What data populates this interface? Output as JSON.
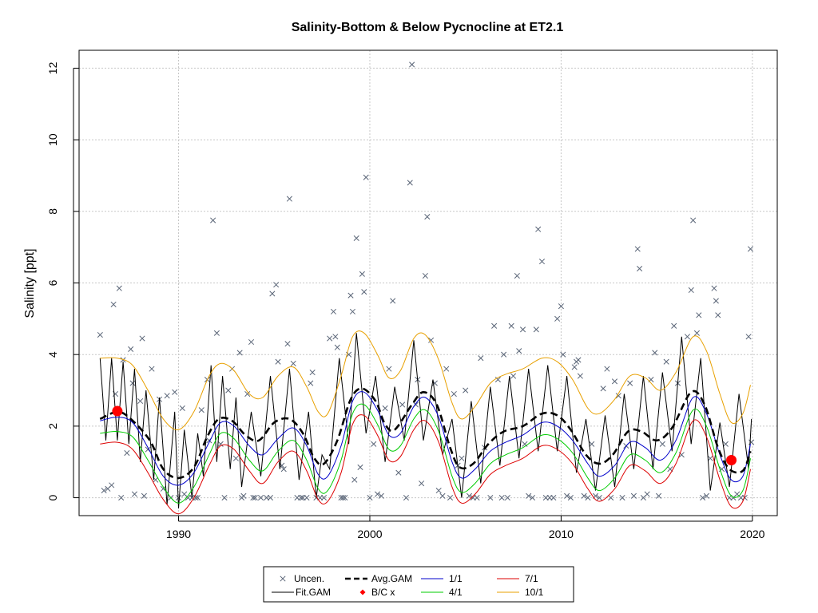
{
  "chart_data": {
    "type": "line",
    "title": "Salinity-Bottom & Below Pycnocline at ET2.1",
    "xlabel": "",
    "ylabel": "Salinity [ppt]",
    "xlim": [
      1984.8,
      2021.3
    ],
    "ylim": [
      -0.5,
      12.5
    ],
    "x_ticks": [
      "1990",
      "2000",
      "2010",
      "2020"
    ],
    "y_ticks": [
      "0",
      "2",
      "4",
      "6",
      "8",
      "10",
      "12"
    ],
    "grid": true,
    "legend_position": "bottom",
    "legend": [
      {
        "label": "Uncen.",
        "symbol": "x",
        "color": "#5a6577"
      },
      {
        "label": "Fit.GAM",
        "symbol": "line",
        "color": "#000000"
      },
      {
        "label": "Avg.GAM",
        "symbol": "dashed",
        "color": "#000000"
      },
      {
        "label": "B/C x",
        "symbol": "diamond",
        "color": "#ff0000"
      },
      {
        "label": "1/1",
        "symbol": "line",
        "color": "#0000cc"
      },
      {
        "label": "4/1",
        "symbol": "line",
        "color": "#00cc00"
      },
      {
        "label": "7/1",
        "symbol": "line",
        "color": "#dd0000"
      },
      {
        "label": "10/1",
        "symbol": "line",
        "color": "#e8a000"
      }
    ],
    "avg_gam": {
      "x": [
        1985.9,
        1986.8,
        1987.5,
        1988.5,
        1989.2,
        1990.0,
        1990.8,
        1991.5,
        1992.1,
        1992.8,
        1993.5,
        1994.2,
        1995.0,
        1995.8,
        1996.5,
        1997.1,
        1997.6,
        1998.3,
        1999.0,
        1999.6,
        2000.3,
        2000.8,
        2001.3,
        2002.2,
        2002.8,
        2003.5,
        2004.2,
        2004.7,
        2005.4,
        2006.2,
        2007.0,
        2008.0,
        2009.0,
        2009.8,
        2010.5,
        2011.3,
        2012.0,
        2012.7,
        2013.5,
        2014.2,
        2015.0,
        2015.8,
        2016.8,
        2017.5,
        2018.2,
        2018.8,
        2019.5,
        2019.9
      ],
      "y": [
        2.2,
        2.4,
        2.2,
        1.6,
        0.8,
        0.55,
        0.85,
        1.7,
        2.2,
        2.15,
        1.75,
        1.6,
        2.1,
        2.2,
        1.8,
        1.1,
        0.95,
        1.6,
        2.75,
        3.05,
        2.7,
        2.05,
        1.9,
        2.6,
        2.95,
        2.6,
        1.4,
        0.85,
        0.95,
        1.5,
        1.85,
        2.0,
        2.35,
        2.3,
        1.9,
        1.2,
        0.95,
        1.2,
        1.85,
        1.85,
        1.6,
        1.95,
        2.95,
        2.6,
        1.4,
        0.8,
        0.75,
        1.3
      ]
    },
    "fit_gam": {
      "x": [
        1985.9,
        1986.2,
        1986.5,
        1986.8,
        1987.1,
        1987.4,
        1987.7,
        1988.0,
        1988.3,
        1988.7,
        1989.0,
        1989.4,
        1989.8,
        1990.0,
        1990.3,
        1990.7,
        1991.0,
        1991.3,
        1991.7,
        1992.0,
        1992.3,
        1992.7,
        1993.0,
        1993.3,
        1993.8,
        1994.3,
        1994.8,
        1995.3,
        1995.8,
        1996.3,
        1996.8,
        1997.2,
        1997.5,
        1997.9,
        1998.4,
        1998.9,
        1999.3,
        1999.8,
        2000.3,
        2000.8,
        2001.3,
        2001.8,
        2002.3,
        2002.8,
        2003.3,
        2003.8,
        2004.3,
        2004.8,
        2005.3,
        2005.8,
        2006.3,
        2006.8,
        2007.3,
        2007.8,
        2008.3,
        2008.8,
        2009.3,
        2009.8,
        2010.3,
        2010.8,
        2011.3,
        2011.8,
        2012.3,
        2012.8,
        2013.3,
        2013.8,
        2014.3,
        2014.8,
        2015.3,
        2015.8,
        2016.3,
        2016.8,
        2017.3,
        2017.8,
        2018.3,
        2018.8,
        2019.3,
        2019.8,
        2019.95
      ],
      "y": [
        3.9,
        1.6,
        3.9,
        1.6,
        3.8,
        1.5,
        3.6,
        1.0,
        3.0,
        0.5,
        2.8,
        -0.2,
        2.4,
        -0.3,
        1.9,
        0.0,
        1.8,
        0.6,
        3.7,
        1.0,
        3.4,
        0.8,
        2.8,
        0.3,
        2.4,
        0.6,
        3.4,
        0.8,
        3.6,
        0.5,
        2.4,
        0.0,
        1.2,
        0.8,
        3.9,
        1.5,
        4.6,
        1.8,
        3.4,
        1.0,
        3.1,
        1.6,
        4.4,
        1.6,
        3.3,
        1.2,
        2.2,
        0.0,
        2.7,
        0.4,
        3.1,
        0.9,
        3.4,
        1.1,
        3.6,
        1.3,
        3.7,
        1.3,
        3.4,
        0.7,
        2.2,
        0.2,
        2.3,
        0.3,
        2.9,
        0.8,
        3.4,
        0.8,
        3.5,
        1.3,
        4.5,
        1.5,
        3.9,
        0.2,
        2.1,
        0.3,
        2.9,
        0.8,
        2.2
      ]
    },
    "series_1_1": {
      "x": [
        1985.9,
        1986.8,
        1987.6,
        1988.4,
        1989.2,
        1990.0,
        1990.8,
        1991.6,
        1992.2,
        1992.9,
        1993.7,
        1994.4,
        1995.2,
        1996.0,
        1996.7,
        1997.3,
        1997.8,
        1998.5,
        1999.1,
        1999.7,
        2000.4,
        2001.0,
        2001.6,
        2002.3,
        2002.9,
        2003.6,
        2004.3,
        2004.8,
        2005.5,
        2006.3,
        2007.1,
        2008.0,
        2009.0,
        2009.8,
        2010.6,
        2011.4,
        2012.0,
        2012.8,
        2013.6,
        2014.4,
        2015.2,
        2016.0,
        2016.9,
        2017.6,
        2018.3,
        2018.9,
        2019.5,
        2019.9
      ],
      "y": [
        2.15,
        2.25,
        2.1,
        1.4,
        0.6,
        0.35,
        0.7,
        1.55,
        2.1,
        2.0,
        1.45,
        1.2,
        1.65,
        1.95,
        1.45,
        0.65,
        0.6,
        1.45,
        2.7,
        2.95,
        2.45,
        1.75,
        1.8,
        2.55,
        2.8,
        2.25,
        1.0,
        0.55,
        0.8,
        1.3,
        1.55,
        1.75,
        2.1,
        2.0,
        1.6,
        0.95,
        0.6,
        0.9,
        1.55,
        1.4,
        1.05,
        1.6,
        2.8,
        2.35,
        1.2,
        0.5,
        0.6,
        1.5
      ]
    },
    "series_4_1": {
      "x": [
        1985.9,
        1986.8,
        1987.6,
        1988.4,
        1989.2,
        1990.0,
        1990.8,
        1991.6,
        1992.2,
        1992.9,
        1993.7,
        1994.4,
        1995.2,
        1996.0,
        1996.7,
        1997.3,
        1997.8,
        1998.5,
        1999.1,
        1999.7,
        2000.4,
        2001.0,
        2001.6,
        2002.3,
        2002.9,
        2003.6,
        2004.3,
        2004.8,
        2005.5,
        2006.3,
        2007.1,
        2008.0,
        2009.0,
        2009.8,
        2010.6,
        2011.4,
        2012.0,
        2012.8,
        2013.6,
        2014.4,
        2015.2,
        2016.0,
        2016.9,
        2017.6,
        2018.3,
        2018.9,
        2019.5,
        2019.9
      ],
      "y": [
        1.8,
        1.85,
        1.7,
        1.05,
        0.3,
        -0.15,
        0.3,
        1.2,
        1.8,
        1.65,
        1.05,
        0.75,
        1.3,
        1.6,
        1.05,
        0.25,
        0.2,
        1.05,
        2.35,
        2.6,
        2.05,
        1.35,
        1.45,
        2.2,
        2.45,
        1.85,
        0.6,
        0.15,
        0.4,
        0.95,
        1.2,
        1.4,
        1.75,
        1.65,
        1.25,
        0.55,
        0.2,
        0.55,
        1.2,
        1.05,
        0.7,
        1.25,
        2.45,
        2.0,
        0.8,
        0.05,
        0.2,
        1.1
      ]
    },
    "series_7_1": {
      "x": [
        1985.9,
        1986.8,
        1987.6,
        1988.4,
        1989.2,
        1990.0,
        1990.8,
        1991.6,
        1992.2,
        1992.9,
        1993.7,
        1994.4,
        1995.2,
        1996.0,
        1996.7,
        1997.3,
        1997.8,
        1998.5,
        1999.1,
        1999.7,
        2000.4,
        2001.0,
        2001.6,
        2002.3,
        2002.9,
        2003.6,
        2004.3,
        2004.8,
        2005.5,
        2006.3,
        2007.1,
        2008.0,
        2009.0,
        2009.8,
        2010.6,
        2011.4,
        2012.0,
        2012.8,
        2013.6,
        2014.4,
        2015.2,
        2016.0,
        2016.9,
        2017.6,
        2018.3,
        2018.9,
        2019.5,
        2019.9
      ],
      "y": [
        1.5,
        1.55,
        1.35,
        0.7,
        -0.05,
        -0.45,
        0.0,
        0.9,
        1.45,
        1.35,
        0.75,
        0.4,
        1.0,
        1.3,
        0.75,
        -0.05,
        -0.1,
        0.7,
        2.05,
        2.3,
        1.75,
        1.05,
        1.15,
        1.9,
        2.15,
        1.55,
        0.3,
        -0.15,
        0.1,
        0.65,
        0.9,
        1.1,
        1.45,
        1.35,
        0.95,
        0.25,
        -0.1,
        0.25,
        0.9,
        0.75,
        0.4,
        0.95,
        2.15,
        1.7,
        0.5,
        -0.25,
        -0.1,
        0.8
      ]
    },
    "series_10_1": {
      "x": [
        1985.9,
        1986.8,
        1987.6,
        1988.4,
        1989.2,
        1990.0,
        1990.8,
        1991.6,
        1992.2,
        1992.9,
        1993.7,
        1994.4,
        1995.2,
        1996.0,
        1996.7,
        1997.3,
        1997.8,
        1998.5,
        1999.1,
        1999.7,
        2000.4,
        2001.0,
        2001.6,
        2002.3,
        2002.9,
        2003.6,
        2004.3,
        2004.8,
        2005.5,
        2006.3,
        2007.1,
        2008.0,
        2009.0,
        2009.8,
        2010.6,
        2011.4,
        2012.0,
        2012.8,
        2013.6,
        2014.4,
        2015.2,
        2016.0,
        2016.9,
        2017.6,
        2018.3,
        2018.9,
        2019.5,
        2019.9
      ],
      "y": [
        3.9,
        3.9,
        3.7,
        3.0,
        2.2,
        1.9,
        2.4,
        3.4,
        3.75,
        3.55,
        2.9,
        2.8,
        3.4,
        3.65,
        3.1,
        2.4,
        2.35,
        3.4,
        4.5,
        4.6,
        4.0,
        3.35,
        3.55,
        4.45,
        4.55,
        3.85,
        2.65,
        2.2,
        2.55,
        3.2,
        3.45,
        3.6,
        3.9,
        3.8,
        3.3,
        2.5,
        2.35,
        2.75,
        3.4,
        3.35,
        3.0,
        3.5,
        4.5,
        4.1,
        2.9,
        2.1,
        2.35,
        3.15
      ]
    },
    "bc_points": [
      {
        "x": 1986.8,
        "y": 2.42
      },
      {
        "x": 2018.9,
        "y": 1.05
      }
    ],
    "uncensored_points": [
      [
        1985.9,
        4.55
      ],
      [
        1986.1,
        0.2
      ],
      [
        1986.3,
        0.25
      ],
      [
        1986.5,
        0.35
      ],
      [
        1986.6,
        5.4
      ],
      [
        1986.7,
        2.9
      ],
      [
        1986.9,
        5.85
      ],
      [
        1987.0,
        0.0
      ],
      [
        1987.1,
        3.85
      ],
      [
        1987.3,
        1.25
      ],
      [
        1987.5,
        4.15
      ],
      [
        1987.6,
        3.2
      ],
      [
        1987.7,
        0.1
      ],
      [
        1988.0,
        2.7
      ],
      [
        1988.1,
        4.45
      ],
      [
        1988.2,
        0.05
      ],
      [
        1988.4,
        1.35
      ],
      [
        1988.6,
        3.6
      ],
      [
        1988.8,
        0.5
      ],
      [
        1989.0,
        2.75
      ],
      [
        1989.2,
        0.25
      ],
      [
        1989.4,
        2.85
      ],
      [
        1989.6,
        0.0
      ],
      [
        1989.8,
        2.95
      ],
      [
        1990.0,
        0.0
      ],
      [
        1990.2,
        2.5
      ],
      [
        1990.3,
        0.1
      ],
      [
        1990.5,
        0.0
      ],
      [
        1990.7,
        0.0
      ],
      [
        1990.9,
        0.0
      ],
      [
        1991.0,
        0.0
      ],
      [
        1991.2,
        2.45
      ],
      [
        1991.5,
        3.3
      ],
      [
        1991.6,
        1.6
      ],
      [
        1991.8,
        7.75
      ],
      [
        1992.0,
        4.6
      ],
      [
        1992.2,
        1.5
      ],
      [
        1992.4,
        0.0
      ],
      [
        1992.6,
        3.0
      ],
      [
        1992.8,
        3.6
      ],
      [
        1993.0,
        1.1
      ],
      [
        1993.2,
        4.05
      ],
      [
        1993.3,
        0.0
      ],
      [
        1993.4,
        0.05
      ],
      [
        1993.6,
        2.9
      ],
      [
        1993.8,
        4.35
      ],
      [
        1993.9,
        0.0
      ],
      [
        1994.0,
        0.0
      ],
      [
        1994.3,
        0.0
      ],
      [
        1994.6,
        0.0
      ],
      [
        1994.8,
        0.0
      ],
      [
        1994.9,
        5.7
      ],
      [
        1995.1,
        5.95
      ],
      [
        1995.2,
        3.8
      ],
      [
        1995.4,
        0.9
      ],
      [
        1995.5,
        0.8
      ],
      [
        1995.7,
        4.3
      ],
      [
        1995.8,
        8.35
      ],
      [
        1996.0,
        3.75
      ],
      [
        1996.2,
        0.0
      ],
      [
        1996.4,
        0.0
      ],
      [
        1996.5,
        0.0
      ],
      [
        1996.7,
        0.0
      ],
      [
        1996.9,
        3.2
      ],
      [
        1997.0,
        3.5
      ],
      [
        1997.2,
        0.0
      ],
      [
        1997.4,
        0.0
      ],
      [
        1997.6,
        0.0
      ],
      [
        1997.9,
        4.45
      ],
      [
        1998.1,
        5.2
      ],
      [
        1998.2,
        4.5
      ],
      [
        1998.3,
        4.2
      ],
      [
        1998.5,
        0.0
      ],
      [
        1998.6,
        0.0
      ],
      [
        1998.7,
        0.0
      ],
      [
        1998.9,
        4.0
      ],
      [
        1999.0,
        5.65
      ],
      [
        1999.1,
        5.2
      ],
      [
        1999.2,
        0.5
      ],
      [
        1999.3,
        7.25
      ],
      [
        1999.5,
        0.85
      ],
      [
        1999.6,
        6.25
      ],
      [
        1999.7,
        5.75
      ],
      [
        1999.8,
        8.95
      ],
      [
        2000.0,
        0.0
      ],
      [
        2000.2,
        1.5
      ],
      [
        2000.4,
        0.1
      ],
      [
        2000.6,
        0.05
      ],
      [
        2000.8,
        2.5
      ],
      [
        2001.0,
        3.6
      ],
      [
        2001.2,
        5.5
      ],
      [
        2001.5,
        0.7
      ],
      [
        2001.7,
        2.6
      ],
      [
        2001.9,
        0.0
      ],
      [
        2002.1,
        8.8
      ],
      [
        2002.2,
        12.1
      ],
      [
        2002.4,
        2.6
      ],
      [
        2002.5,
        3.3
      ],
      [
        2002.7,
        0.4
      ],
      [
        2002.9,
        6.2
      ],
      [
        2003.0,
        7.85
      ],
      [
        2003.2,
        4.4
      ],
      [
        2003.4,
        3.2
      ],
      [
        2003.6,
        0.2
      ],
      [
        2003.8,
        0.05
      ],
      [
        2004.0,
        3.6
      ],
      [
        2004.2,
        0.0
      ],
      [
        2004.4,
        2.9
      ],
      [
        2004.6,
        0.9
      ],
      [
        2004.8,
        1.1
      ],
      [
        2005.0,
        3.0
      ],
      [
        2005.2,
        0.05
      ],
      [
        2005.4,
        0.0
      ],
      [
        2005.6,
        0.0
      ],
      [
        2005.8,
        3.9
      ],
      [
        2006.0,
        1.4
      ],
      [
        2006.3,
        0.0
      ],
      [
        2006.5,
        4.8
      ],
      [
        2006.7,
        3.3
      ],
      [
        2006.9,
        0.0
      ],
      [
        2007.0,
        4.0
      ],
      [
        2007.2,
        0.0
      ],
      [
        2007.4,
        4.8
      ],
      [
        2007.5,
        3.4
      ],
      [
        2007.7,
        6.2
      ],
      [
        2007.8,
        4.1
      ],
      [
        2008.0,
        4.7
      ],
      [
        2008.1,
        1.5
      ],
      [
        2008.3,
        0.05
      ],
      [
        2008.5,
        0.0
      ],
      [
        2008.7,
        4.7
      ],
      [
        2008.8,
        7.5
      ],
      [
        2009.0,
        6.6
      ],
      [
        2009.2,
        0.0
      ],
      [
        2009.4,
        0.0
      ],
      [
        2009.6,
        0.0
      ],
      [
        2009.8,
        5.0
      ],
      [
        2010.0,
        5.35
      ],
      [
        2010.1,
        4.0
      ],
      [
        2010.3,
        0.05
      ],
      [
        2010.5,
        0.0
      ],
      [
        2010.7,
        3.65
      ],
      [
        2010.8,
        3.8
      ],
      [
        2010.9,
        3.85
      ],
      [
        2011.0,
        3.4
      ],
      [
        2011.2,
        0.05
      ],
      [
        2011.4,
        0.0
      ],
      [
        2011.6,
        1.5
      ],
      [
        2011.8,
        0.05
      ],
      [
        2012.0,
        0.0
      ],
      [
        2012.2,
        3.05
      ],
      [
        2012.4,
        3.6
      ],
      [
        2012.6,
        0.0
      ],
      [
        2012.8,
        3.25
      ],
      [
        2013.0,
        2.85
      ],
      [
        2013.2,
        0.0
      ],
      [
        2013.4,
        1.45
      ],
      [
        2013.6,
        3.2
      ],
      [
        2013.8,
        0.05
      ],
      [
        2014.0,
        6.95
      ],
      [
        2014.1,
        6.4
      ],
      [
        2014.3,
        0.0
      ],
      [
        2014.5,
        0.1
      ],
      [
        2014.7,
        3.3
      ],
      [
        2014.9,
        4.05
      ],
      [
        2015.1,
        0.05
      ],
      [
        2015.3,
        1.5
      ],
      [
        2015.5,
        3.8
      ],
      [
        2015.7,
        0.8
      ],
      [
        2015.9,
        4.8
      ],
      [
        2016.1,
        3.2
      ],
      [
        2016.3,
        1.2
      ],
      [
        2016.6,
        4.5
      ],
      [
        2016.8,
        5.8
      ],
      [
        2016.9,
        7.75
      ],
      [
        2017.1,
        4.6
      ],
      [
        2017.2,
        5.1
      ],
      [
        2017.4,
        0.0
      ],
      [
        2017.6,
        0.05
      ],
      [
        2017.8,
        1.1
      ],
      [
        2018.0,
        5.85
      ],
      [
        2018.1,
        5.5
      ],
      [
        2018.2,
        5.1
      ],
      [
        2018.4,
        0.8
      ],
      [
        2018.6,
        1.5
      ],
      [
        2018.8,
        0.0
      ],
      [
        2019.0,
        0.0
      ],
      [
        2019.2,
        0.1
      ],
      [
        2019.4,
        0.0
      ],
      [
        2019.6,
        0.0
      ],
      [
        2019.8,
        4.5
      ],
      [
        2019.9,
        6.95
      ],
      [
        2019.95,
        1.55
      ]
    ]
  }
}
